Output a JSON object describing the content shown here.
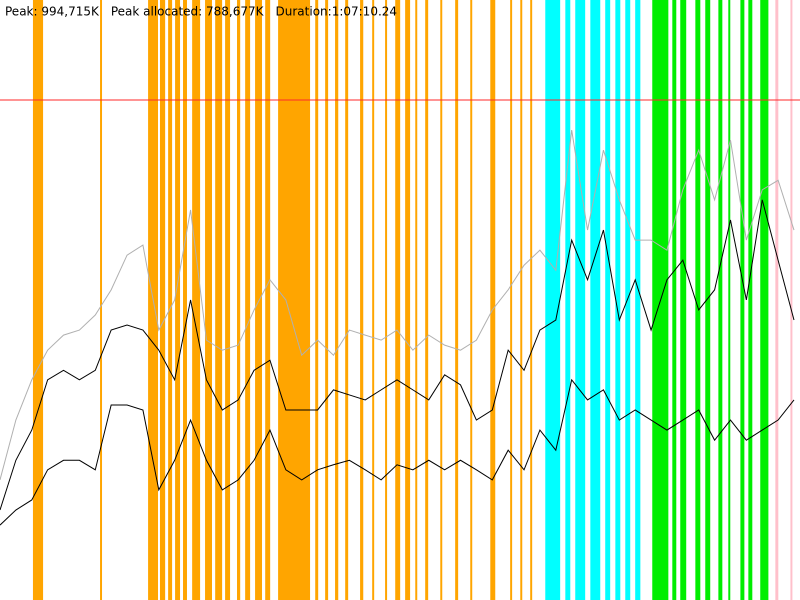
{
  "chart_data": {
    "type": "line",
    "header_items": [
      "Peak: 994,715K",
      "Peak allocated: 788,677K",
      "Duration:1:07:10.24"
    ],
    "xlim": [
      0,
      4030.24
    ],
    "ylim": [
      0,
      1193658
    ],
    "peak_line": {
      "value": 994715,
      "color": "#ff2a2a"
    },
    "event_groups": [
      {
        "color": "#ffa500",
        "spans": [
          [
            166,
            217
          ],
          [
            504,
            514
          ],
          [
            746,
            796
          ],
          [
            806,
            832
          ],
          [
            847,
            867
          ],
          [
            882,
            907
          ],
          [
            922,
            942
          ],
          [
            968,
            1008
          ],
          [
            1033,
            1068
          ],
          [
            1084,
            1119
          ],
          [
            1134,
            1159
          ],
          [
            1194,
            1210
          ],
          [
            1235,
            1260
          ],
          [
            1285,
            1320
          ],
          [
            1336,
            1361
          ],
          [
            1401,
            1562
          ],
          [
            1588,
            1603
          ],
          [
            1638,
            1653
          ],
          [
            1688,
            1704
          ],
          [
            1739,
            1754
          ],
          [
            1814,
            1830
          ],
          [
            1875,
            1885
          ],
          [
            1940,
            1950
          ],
          [
            1991,
            2016
          ],
          [
            2041,
            2066
          ],
          [
            2092,
            2102
          ],
          [
            2142,
            2157
          ],
          [
            2218,
            2228
          ],
          [
            2293,
            2308
          ],
          [
            2369,
            2379
          ],
          [
            2470,
            2495
          ],
          [
            2570,
            2580
          ],
          [
            2621,
            2631
          ],
          [
            2671,
            2681
          ]
        ]
      },
      {
        "color": "#00ffff",
        "spans": [
          [
            2747,
            2822
          ],
          [
            2848,
            2873
          ],
          [
            2898,
            2948
          ],
          [
            2974,
            3024
          ],
          [
            3049,
            3074
          ],
          [
            3100,
            3125
          ],
          [
            3150,
            3175
          ],
          [
            3200,
            3226
          ]
        ]
      },
      {
        "color": "#00ee00",
        "spans": [
          [
            3286,
            3367
          ],
          [
            3387,
            3407
          ],
          [
            3427,
            3457
          ],
          [
            3503,
            3528
          ],
          [
            3553,
            3578
          ],
          [
            3619,
            3639
          ],
          [
            3669,
            3679
          ],
          [
            3730,
            3750
          ],
          [
            3770,
            3790
          ],
          [
            3830,
            3871
          ]
        ]
      },
      {
        "color": "#ffc0cb",
        "spans": [
          [
            3906,
            3921
          ],
          [
            3982,
            3992
          ]
        ]
      }
    ],
    "x": [
      0,
      80,
      160,
      240,
      320,
      400,
      480,
      560,
      640,
      720,
      800,
      880,
      960,
      1040,
      1120,
      1200,
      1280,
      1360,
      1440,
      1520,
      1600,
      1680,
      1760,
      1840,
      1920,
      2000,
      2080,
      2160,
      2240,
      2320,
      2400,
      2480,
      2560,
      2640,
      2720,
      2800,
      2880,
      2960,
      3040,
      3120,
      3200,
      3280,
      3360,
      3440,
      3520,
      3600,
      3680,
      3760,
      3840,
      3920,
      4000
    ],
    "series": [
      {
        "color": "#b0b0b0",
        "values": [
          239000,
          358000,
          438000,
          497000,
          527000,
          537000,
          567000,
          617000,
          686000,
          706000,
          537000,
          597000,
          776000,
          517000,
          497000,
          507000,
          577000,
          637000,
          597000,
          487000,
          517000,
          487000,
          537000,
          527000,
          517000,
          537000,
          497000,
          527000,
          507000,
          497000,
          517000,
          577000,
          617000,
          666000,
          696000,
          656000,
          935000,
          736000,
          895000,
          796000,
          716000,
          716000,
          696000,
          816000,
          895000,
          796000,
          915000,
          716000,
          816000,
          835000,
          736000
        ]
      },
      {
        "color": "#000000",
        "values": [
          179000,
          278000,
          338000,
          438000,
          457000,
          438000,
          457000,
          537000,
          547000,
          537000,
          497000,
          438000,
          597000,
          438000,
          378000,
          398000,
          457000,
          477000,
          378000,
          378000,
          378000,
          418000,
          408000,
          398000,
          418000,
          438000,
          418000,
          398000,
          448000,
          428000,
          358000,
          378000,
          497000,
          457000,
          537000,
          557000,
          716000,
          637000,
          736000,
          557000,
          637000,
          537000,
          637000,
          676000,
          577000,
          617000,
          756000,
          597000,
          796000,
          676000,
          557000
        ]
      },
      {
        "color": "#000000",
        "values": [
          149000,
          179000,
          199000,
          259000,
          278000,
          278000,
          259000,
          388000,
          388000,
          378000,
          219000,
          278000,
          358000,
          278000,
          219000,
          239000,
          278000,
          338000,
          259000,
          239000,
          259000,
          269000,
          278000,
          259000,
          239000,
          269000,
          259000,
          278000,
          259000,
          278000,
          259000,
          239000,
          298000,
          259000,
          338000,
          298000,
          438000,
          398000,
          418000,
          358000,
          378000,
          358000,
          338000,
          358000,
          378000,
          318000,
          358000,
          318000,
          338000,
          358000,
          398000
        ]
      }
    ]
  }
}
